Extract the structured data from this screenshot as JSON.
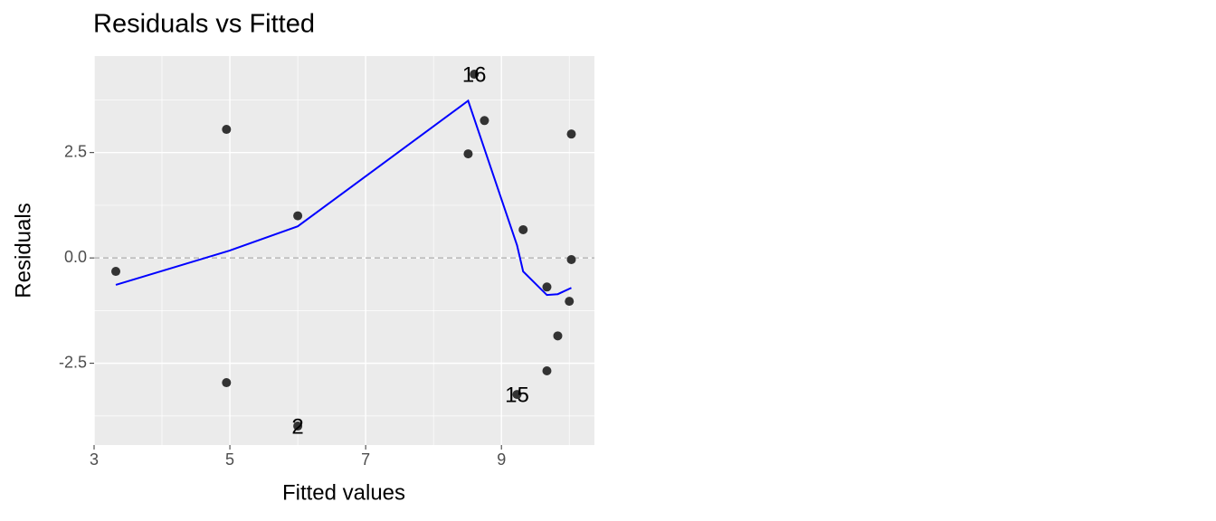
{
  "chart_data": {
    "type": "scatter",
    "title": "Residuals vs Fitted",
    "xlabel": "Fitted values",
    "ylabel": "Residuals",
    "xlim": [
      3,
      10.37
    ],
    "ylim": [
      -4.44,
      4.79
    ],
    "xticks": [
      3,
      5,
      7,
      9
    ],
    "yticks": [
      {
        "value": 2.5,
        "label": "2.5"
      },
      {
        "value": 0,
        "label": "0.0"
      },
      {
        "value": -2.5,
        "label": "-2.5"
      }
    ],
    "x_minor_grid": [
      4,
      6,
      8,
      10
    ],
    "y_minor_grid": [
      3.75,
      1.25,
      -1.25,
      -3.75
    ],
    "grid": true,
    "hline": 0,
    "points": {
      "color": "#333333",
      "x": [
        3.32,
        4.95,
        4.95,
        6.0,
        6.0,
        8.51,
        8.6,
        8.75,
        9.32,
        9.23,
        9.67,
        9.67,
        9.83,
        10.03,
        10.03,
        10.0
      ],
      "values": [
        -0.32,
        3.05,
        -2.96,
        1.0,
        -3.99,
        2.47,
        4.36,
        3.26,
        0.67,
        -3.24,
        -0.69,
        -2.68,
        -1.85,
        2.94,
        -0.04,
        -1.03
      ],
      "labels": [
        null,
        null,
        null,
        null,
        "2",
        null,
        "16",
        null,
        null,
        "15",
        null,
        null,
        null,
        null,
        null,
        null
      ]
    },
    "smooth": {
      "color": "#0000ff",
      "x": [
        3.32,
        4.99,
        6.0,
        8.51,
        9.23,
        9.32,
        9.67,
        9.83,
        10.03
      ],
      "values": [
        -0.64,
        0.17,
        0.75,
        3.73,
        0.3,
        -0.32,
        -0.88,
        -0.86,
        -0.71
      ]
    }
  }
}
